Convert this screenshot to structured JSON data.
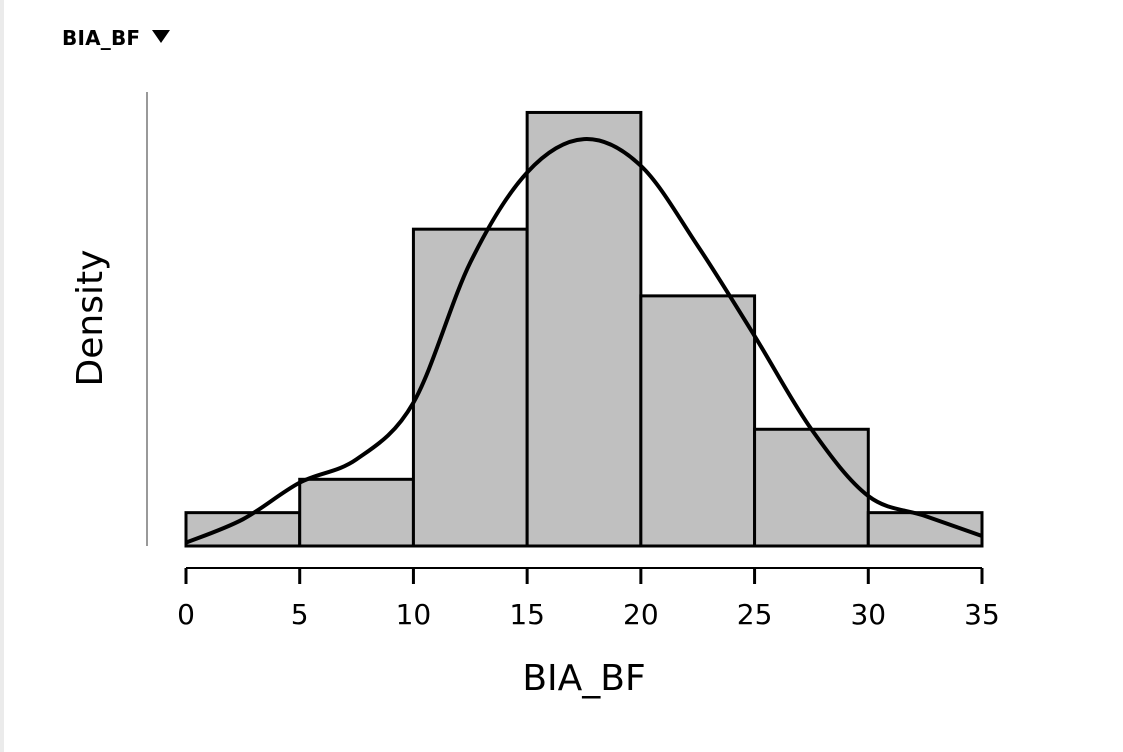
{
  "header": {
    "title": "BIA_BF",
    "dropdown_icon": "triangle-down-icon"
  },
  "chart_data": {
    "type": "bar",
    "subtype": "histogram_with_density",
    "title": "BIA_BF",
    "xlabel": "BIA_BF",
    "ylabel": "Density",
    "bins": [
      [
        0,
        5
      ],
      [
        5,
        10
      ],
      [
        10,
        15
      ],
      [
        15,
        20
      ],
      [
        20,
        25
      ],
      [
        25,
        30
      ],
      [
        30,
        35
      ]
    ],
    "categories": [
      "0-5",
      "5-10",
      "10-15",
      "15-20",
      "20-25",
      "25-30",
      "30-35"
    ],
    "values": [
      1,
      2,
      9.5,
      13,
      7.5,
      3.5,
      1
    ],
    "values_note": "relative bar heights (y-axis has no tick labels)",
    "density_curve": {
      "x": [
        0,
        2.5,
        5,
        7.5,
        10,
        12.5,
        15,
        17.5,
        20,
        22.5,
        25,
        27.5,
        30,
        32.5,
        35
      ],
      "y": [
        0.1,
        0.8,
        1.9,
        2.6,
        4.3,
        8.5,
        11.2,
        12.2,
        11.4,
        9.0,
        6.3,
        3.5,
        1.5,
        0.9,
        0.3
      ]
    },
    "xticks": [
      "0",
      "5",
      "10",
      "15",
      "20",
      "25",
      "30",
      "35"
    ],
    "xlim": [
      0,
      35
    ],
    "grid": false,
    "legend": null,
    "colors": {
      "bar_fill": "#c0c0c0",
      "bar_stroke": "#000000",
      "curve": "#000000",
      "y_axis": "#999999"
    }
  }
}
